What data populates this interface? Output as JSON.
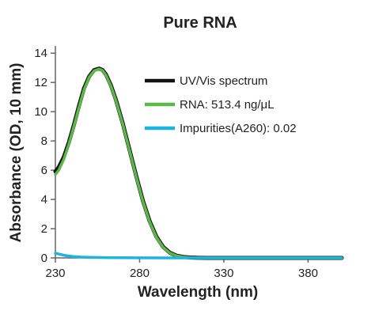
{
  "chart_data": {
    "type": "line",
    "title": "Pure RNA",
    "xlabel": "Wavelength (nm)",
    "ylabel": "Absorbance (OD, 10 mm)",
    "xlim": [
      230,
      400
    ],
    "ylim": [
      0,
      14.5
    ],
    "x_ticks": [
      230,
      280,
      330,
      380
    ],
    "y_ticks": [
      0,
      2,
      4,
      6,
      8,
      10,
      12,
      14
    ],
    "grid": false,
    "legend_position": "top-right",
    "series": [
      {
        "name": "UV/Vis spectrum",
        "color": "#111111",
        "x": [
          230,
          232,
          235,
          238,
          241,
          244,
          247,
          250,
          253,
          256,
          258,
          260,
          263,
          266,
          270,
          274,
          278,
          282,
          286,
          290,
          294,
          298,
          302,
          306,
          310,
          315,
          320,
          330,
          340,
          360,
          380,
          400
        ],
        "y": [
          5.9,
          6.2,
          6.9,
          7.9,
          9.1,
          10.4,
          11.6,
          12.4,
          12.85,
          12.95,
          12.85,
          12.55,
          11.8,
          10.8,
          9.2,
          7.4,
          5.6,
          3.9,
          2.5,
          1.45,
          0.75,
          0.35,
          0.15,
          0.07,
          0.03,
          0.01,
          0.0,
          0.0,
          0.0,
          0.0,
          0.0,
          0.0
        ]
      },
      {
        "name": "RNA: 513.4 ng/μL",
        "color": "#5cb848",
        "x": [
          230,
          232,
          235,
          238,
          241,
          244,
          247,
          250,
          253,
          256,
          258,
          260,
          263,
          266,
          270,
          274,
          278,
          282,
          286,
          290,
          294,
          298,
          302,
          306,
          310,
          315,
          320,
          330,
          340,
          360,
          380,
          400
        ],
        "y": [
          5.7,
          6.0,
          6.75,
          7.8,
          9.0,
          10.3,
          11.5,
          12.35,
          12.8,
          12.92,
          12.82,
          12.5,
          11.75,
          10.75,
          9.15,
          7.35,
          5.55,
          3.85,
          2.45,
          1.4,
          0.72,
          0.33,
          0.14,
          0.06,
          0.02,
          0.01,
          0.0,
          0.0,
          0.0,
          0.0,
          0.0,
          0.0
        ]
      },
      {
        "name": "Impurities(A260): 0.02",
        "color": "#1fb3e0",
        "x": [
          230,
          233,
          236,
          240,
          245,
          250,
          260,
          280,
          300,
          330,
          360,
          400
        ],
        "y": [
          0.32,
          0.24,
          0.16,
          0.1,
          0.06,
          0.04,
          0.02,
          0.01,
          0.0,
          0.0,
          0.0,
          0.0
        ]
      }
    ]
  }
}
